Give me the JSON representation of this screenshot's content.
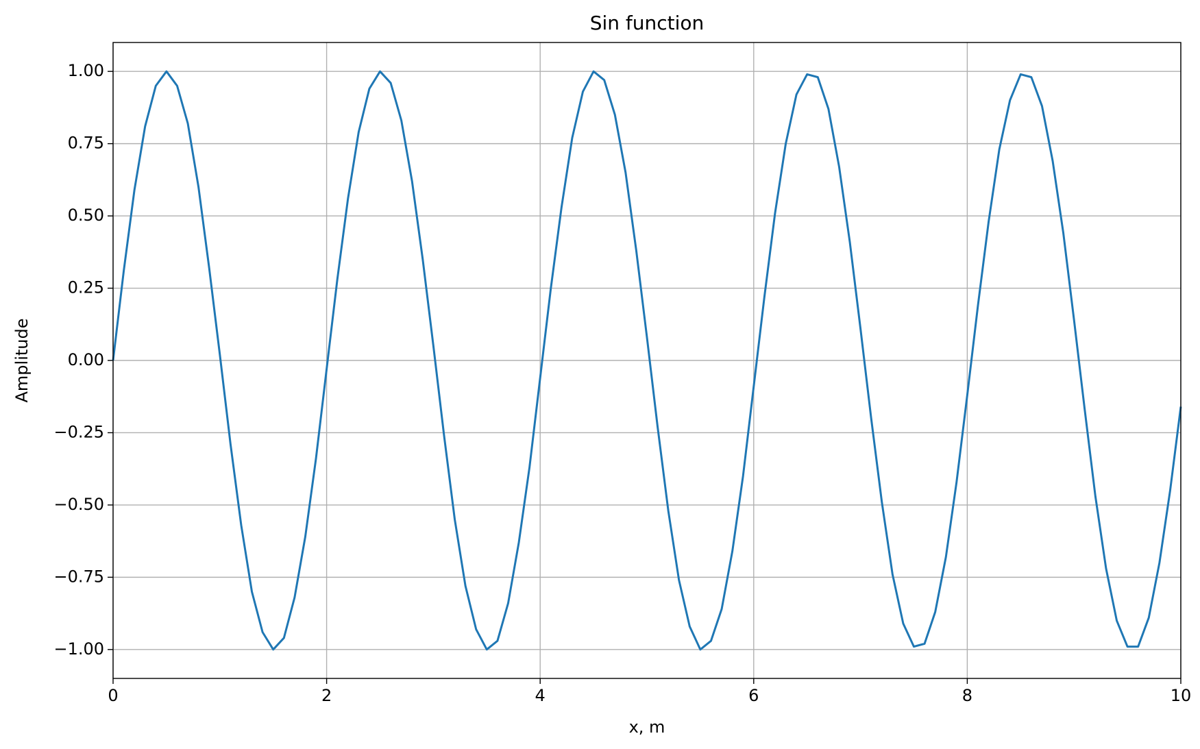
{
  "chart_data": {
    "type": "line",
    "title": "Sin function",
    "x_label": "x, m",
    "y_label": "Amplitude",
    "xlim": [
      0,
      10
    ],
    "ylim": [
      -1.1,
      1.1
    ],
    "xticks": [
      0,
      2,
      4,
      6,
      8,
      10
    ],
    "yticks": [
      {
        "value": 1,
        "label": "1.00"
      },
      {
        "value": 0.75,
        "label": "0.75"
      },
      {
        "value": 0.5,
        "label": "0.50"
      },
      {
        "value": 0.25,
        "label": "0.25"
      },
      {
        "value": 0,
        "label": "0.00"
      },
      {
        "value": -0.25,
        "label": "−0.25"
      },
      {
        "value": -0.5,
        "label": "−0.50"
      },
      {
        "value": -0.75,
        "label": "−0.75"
      },
      {
        "value": -1,
        "label": "−1.00"
      }
    ],
    "grid": true,
    "x": [
      0,
      0.1,
      0.2,
      0.3,
      0.4,
      0.5,
      0.6,
      0.7,
      0.8,
      0.9,
      1,
      1.1,
      1.2,
      1.3,
      1.4,
      1.5,
      1.6,
      1.7,
      1.8,
      1.9,
      2,
      2.1,
      2.2,
      2.3,
      2.4,
      2.5,
      2.6,
      2.7,
      2.8,
      2.9,
      3,
      3.1,
      3.2,
      3.3,
      3.4,
      3.5,
      3.6,
      3.7,
      3.8,
      3.9,
      4,
      4.1,
      4.2,
      4.3,
      4.4,
      4.5,
      4.6,
      4.7,
      4.8,
      4.9,
      5,
      5.1,
      5.2,
      5.3,
      5.4,
      5.5,
      5.6,
      5.7,
      5.8,
      5.9,
      6,
      6.1,
      6.2,
      6.3,
      6.4,
      6.5,
      6.6,
      6.7,
      6.8,
      6.9,
      7,
      7.1,
      7.2,
      7.3,
      7.4,
      7.5,
      7.6,
      7.7,
      7.8,
      7.9,
      8,
      8.1,
      8.2,
      8.3,
      8.4,
      8.5,
      8.6,
      8.7,
      8.8,
      8.9,
      9,
      9.1,
      9.2,
      9.3,
      9.4,
      9.5,
      9.6,
      9.7,
      9.8,
      9.9,
      10
    ],
    "series": [
      {
        "color": "#1f77b4",
        "values": [
          0,
          0.31,
          0.59,
          0.81,
          0.95,
          1,
          0.95,
          0.82,
          0.6,
          0.32,
          0.02,
          -0.29,
          -0.57,
          -0.8,
          -0.94,
          -1,
          -0.96,
          -0.82,
          -0.61,
          -0.34,
          -0.03,
          0.28,
          0.56,
          0.79,
          0.94,
          1,
          0.96,
          0.83,
          0.62,
          0.35,
          0.05,
          -0.26,
          -0.55,
          -0.78,
          -0.93,
          -1,
          -0.97,
          -0.84,
          -0.63,
          -0.37,
          -0.06,
          0.25,
          0.53,
          0.77,
          0.93,
          1,
          0.97,
          0.85,
          0.65,
          0.38,
          0.08,
          -0.23,
          -0.52,
          -0.76,
          -0.92,
          -1,
          -0.97,
          -0.86,
          -0.66,
          -0.4,
          -0.09,
          0.22,
          0.51,
          0.75,
          0.92,
          0.99,
          0.98,
          0.87,
          0.67,
          0.41,
          0.11,
          -0.2,
          -0.49,
          -0.74,
          -0.91,
          -0.99,
          -0.98,
          -0.87,
          -0.68,
          -0.42,
          -0.12,
          0.19,
          0.48,
          0.73,
          0.9,
          0.99,
          0.98,
          0.88,
          0.69,
          0.44,
          0.14,
          -0.17,
          -0.47,
          -0.72,
          -0.9,
          -0.99,
          -0.99,
          -0.89,
          -0.7,
          -0.45,
          -0.16
        ]
      }
    ]
  }
}
